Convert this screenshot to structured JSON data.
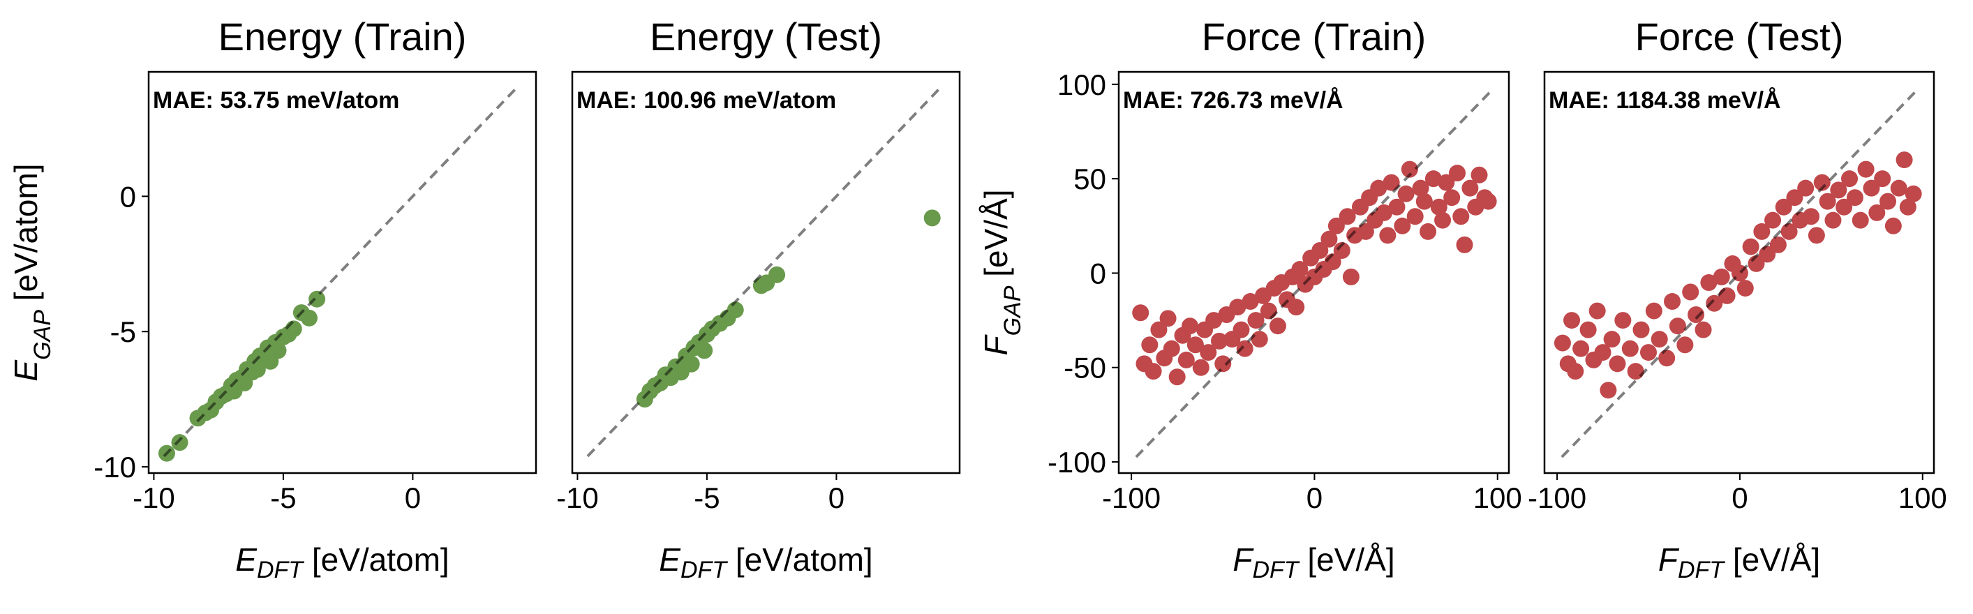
{
  "chart_data": [
    {
      "type": "scatter",
      "title": "Energy (Train)",
      "annotation": "MAE: 53.75 meV/atom",
      "xlabel": {
        "symbol": "E",
        "subscript": "DFT",
        "unit": " [eV/atom]"
      },
      "ylabel": {
        "symbol": "E",
        "subscript": "GAP",
        "unit": " [eV/atom]"
      },
      "color": "#699a4c",
      "xlim": [
        -10.2,
        4.76
      ],
      "ylim": [
        -10.23,
        4.6
      ],
      "xticks": [
        -10,
        -5,
        0
      ],
      "yticks": [
        -10,
        -5,
        0
      ],
      "x": [
        -9.5,
        -9.0,
        -8.3,
        -8.0,
        -7.8,
        -7.6,
        -7.4,
        -7.2,
        -7.0,
        -6.9,
        -6.8,
        -6.6,
        -6.5,
        -6.4,
        -6.2,
        -6.1,
        -6.0,
        -5.9,
        -5.7,
        -5.6,
        -5.5,
        -5.3,
        -5.2,
        -5.0,
        -4.8,
        -4.6,
        -4.3,
        -4.0,
        -3.7
      ],
      "y": [
        -9.5,
        -9.1,
        -8.2,
        -8.0,
        -7.9,
        -7.6,
        -7.4,
        -7.3,
        -7.0,
        -7.2,
        -6.8,
        -6.7,
        -6.9,
        -6.4,
        -6.5,
        -6.1,
        -6.4,
        -5.9,
        -6.0,
        -5.6,
        -6.1,
        -5.4,
        -5.7,
        -5.2,
        -5.1,
        -4.9,
        -4.3,
        -4.5,
        -3.8
      ]
    },
    {
      "type": "scatter",
      "title": "Energy (Test)",
      "annotation": "MAE: 100.96 meV/atom",
      "xlabel": {
        "symbol": "E",
        "subscript": "DFT",
        "unit": " [eV/atom]"
      },
      "color": "#699a4c",
      "xlim": [
        -10.2,
        4.76
      ],
      "ylim": [
        -10.23,
        4.6
      ],
      "xticks": [
        -10,
        -5,
        0
      ],
      "x": [
        -7.4,
        -7.2,
        -7.0,
        -6.8,
        -6.6,
        -6.4,
        -6.2,
        -6.0,
        -5.8,
        -5.6,
        -5.5,
        -5.3,
        -5.1,
        -5.0,
        -4.8,
        -4.5,
        -4.2,
        -3.9,
        -2.9,
        -2.7,
        -2.3,
        3.7
      ],
      "y": [
        -7.5,
        -7.2,
        -7.0,
        -6.9,
        -6.6,
        -6.7,
        -6.3,
        -6.5,
        -5.9,
        -6.2,
        -5.6,
        -5.4,
        -5.7,
        -5.1,
        -4.9,
        -4.7,
        -4.5,
        -4.2,
        -3.3,
        -3.2,
        -2.9,
        -0.8
      ]
    },
    {
      "type": "scatter",
      "title": "Force (Train)",
      "annotation": "MAE: 726.73 meV/Å",
      "xlabel": {
        "symbol": "F",
        "subscript": "DFT",
        "unit": " [eV/Å]"
      },
      "ylabel": {
        "symbol": "F",
        "subscript": "GAP",
        "unit": " [eV/Å]"
      },
      "color": "#c0474a",
      "xlim": [
        -106.9,
        106.2
      ],
      "ylim": [
        -105.9,
        106.6
      ],
      "xticks": [
        -100,
        0,
        100
      ],
      "yticks": [
        -100,
        -50,
        0,
        50,
        100
      ],
      "x": [
        -95,
        -93,
        -90,
        -88,
        -85,
        -82,
        -80,
        -78,
        -75,
        -72,
        -70,
        -68,
        -65,
        -62,
        -60,
        -58,
        -55,
        -52,
        -50,
        -48,
        -45,
        -42,
        -40,
        -38,
        -35,
        -32,
        -30,
        -28,
        -25,
        -22,
        -20,
        -18,
        -15,
        -12,
        -10,
        -8,
        -5,
        -2,
        0,
        3,
        5,
        8,
        10,
        12,
        15,
        18,
        20,
        22,
        25,
        28,
        30,
        33,
        35,
        38,
        40,
        42,
        45,
        48,
        50,
        52,
        55,
        58,
        60,
        62,
        65,
        68,
        70,
        72,
        75,
        78,
        80,
        82,
        85,
        88,
        90,
        93,
        95
      ],
      "y": [
        -21,
        -48,
        -38,
        -52,
        -30,
        -45,
        -24,
        -40,
        -55,
        -33,
        -46,
        -28,
        -38,
        -50,
        -30,
        -42,
        -25,
        -36,
        -48,
        -22,
        -35,
        -18,
        -30,
        -40,
        -15,
        -25,
        -35,
        -12,
        -20,
        -8,
        -28,
        -5,
        -14,
        -2,
        -18,
        2,
        -6,
        8,
        -2,
        12,
        2,
        18,
        6,
        25,
        12,
        30,
        -2,
        20,
        35,
        22,
        40,
        28,
        45,
        32,
        20,
        48,
        35,
        25,
        42,
        55,
        30,
        45,
        38,
        22,
        50,
        35,
        28,
        48,
        40,
        53,
        30,
        15,
        45,
        35,
        52,
        40,
        38
      ]
    },
    {
      "type": "scatter",
      "title": "Force (Test)",
      "annotation": "MAE: 1184.38 meV/Å",
      "xlabel": {
        "symbol": "F",
        "subscript": "DFT",
        "unit": " [eV/Å]"
      },
      "color": "#c0474a",
      "xlim": [
        -106.9,
        106.2
      ],
      "ylim": [
        -105.9,
        106.6
      ],
      "xticks": [
        -100,
        0,
        100
      ],
      "x": [
        -97,
        -94,
        -92,
        -90,
        -87,
        -83,
        -80,
        -78,
        -75,
        -72,
        -70,
        -67,
        -64,
        -60,
        -57,
        -54,
        -50,
        -47,
        -44,
        -40,
        -37,
        -34,
        -30,
        -27,
        -24,
        -20,
        -17,
        -14,
        -10,
        -7,
        -4,
        0,
        3,
        6,
        9,
        12,
        15,
        18,
        21,
        24,
        27,
        30,
        33,
        36,
        39,
        42,
        45,
        48,
        51,
        54,
        57,
        60,
        63,
        66,
        69,
        72,
        75,
        78,
        81,
        84,
        87,
        90,
        92,
        95
      ],
      "y": [
        -37,
        -48,
        -25,
        -52,
        -40,
        -30,
        -46,
        -20,
        -42,
        -62,
        -35,
        -48,
        -25,
        -40,
        -52,
        -30,
        -42,
        -20,
        -35,
        -45,
        -15,
        -28,
        -38,
        -10,
        -22,
        -30,
        -5,
        -16,
        -2,
        -12,
        5,
        0,
        -8,
        14,
        5,
        22,
        10,
        28,
        15,
        35,
        22,
        40,
        28,
        45,
        30,
        20,
        48,
        38,
        28,
        44,
        35,
        50,
        40,
        28,
        55,
        45,
        32,
        50,
        38,
        25,
        45,
        60,
        35,
        42
      ]
    }
  ]
}
